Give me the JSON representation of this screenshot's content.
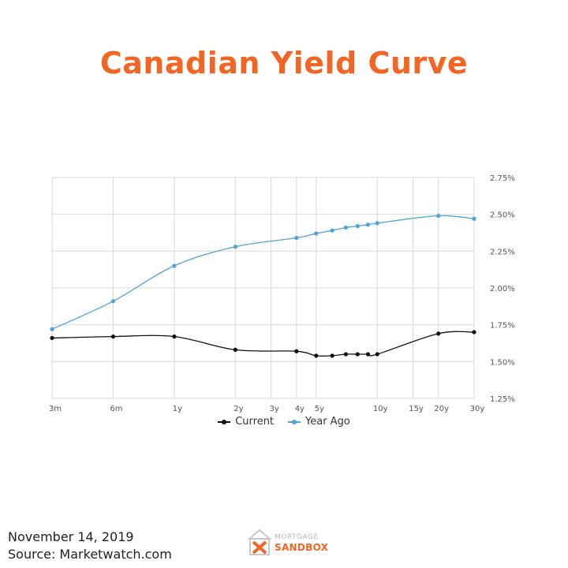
{
  "title": "Canadian Yield Curve",
  "footer": {
    "date": "November 14, 2019",
    "source": "Source: Marketwatch.com"
  },
  "logo": {
    "top_text": "MORTGAGE",
    "bottom_text": "SANDBOX"
  },
  "colors": {
    "title": "#f26522",
    "current": "#111111",
    "year_ago": "#4ba3d9",
    "grid": "#d9d9d9"
  },
  "chart_data": {
    "type": "line",
    "title": "Canadian Yield Curve",
    "categories": [
      "3m",
      "6m",
      "1y",
      "2y",
      "3y",
      "4y",
      "5y",
      "10y",
      "15y",
      "20y",
      "30y"
    ],
    "y_ticks": [
      "2.75%",
      "2.50%",
      "2.25%",
      "2.00%",
      "1.75%",
      "1.50%",
      "1.25%"
    ],
    "ylim": [
      1.25,
      2.75
    ],
    "y_axis_side": "right",
    "grid": true,
    "legend_position": "bottom-center",
    "series": [
      {
        "name": "Current",
        "points": [
          [
            "3m",
            1.66
          ],
          [
            "6m",
            1.67
          ],
          [
            "1y",
            1.67
          ],
          [
            "2y",
            1.58
          ],
          [
            "4y",
            1.57
          ],
          [
            "5y",
            1.54
          ],
          [
            "6y",
            1.54
          ],
          [
            "7y",
            1.55
          ],
          [
            "8y",
            1.55
          ],
          [
            "9y",
            1.55
          ],
          [
            "10y",
            1.55
          ],
          [
            "20y",
            1.69
          ],
          [
            "30y",
            1.7
          ]
        ]
      },
      {
        "name": "Year Ago",
        "points": [
          [
            "3m",
            1.72
          ],
          [
            "6m",
            1.91
          ],
          [
            "1y",
            2.15
          ],
          [
            "2y",
            2.28
          ],
          [
            "4y",
            2.34
          ],
          [
            "5y",
            2.37
          ],
          [
            "6y",
            2.39
          ],
          [
            "7y",
            2.41
          ],
          [
            "8y",
            2.42
          ],
          [
            "9y",
            2.43
          ],
          [
            "10y",
            2.44
          ],
          [
            "20y",
            2.49
          ],
          [
            "30y",
            2.47
          ]
        ]
      }
    ]
  }
}
